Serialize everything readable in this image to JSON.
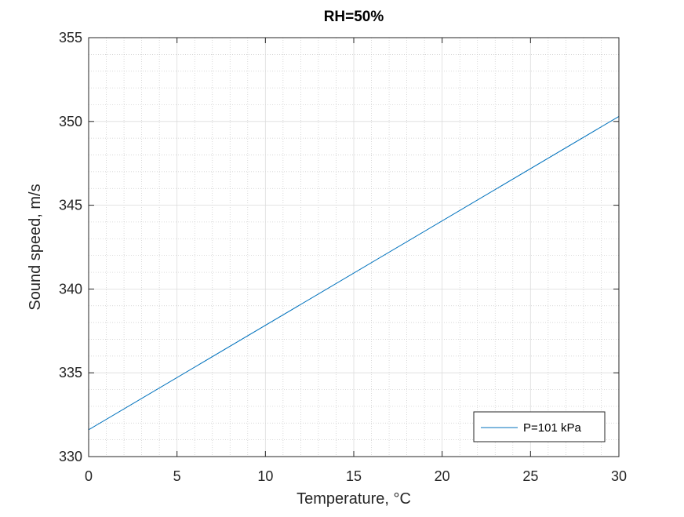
{
  "chart_data": {
    "type": "line",
    "title": "RH=50%",
    "xlabel": "Temperature, °C",
    "ylabel": "Sound speed, m/s",
    "xlim": [
      0,
      30
    ],
    "ylim": [
      330,
      355
    ],
    "x_ticks": [
      "0",
      "5",
      "10",
      "15",
      "20",
      "25",
      "30"
    ],
    "y_ticks": [
      "330",
      "335",
      "340",
      "345",
      "350",
      "355"
    ],
    "grid": true,
    "minor_grid": true,
    "legend_position": "bottom-right",
    "series": [
      {
        "name": "P=101 kPa",
        "color": "#0072bd",
        "x": [
          0,
          30
        ],
        "y": [
          331.6,
          350.3
        ]
      }
    ]
  }
}
